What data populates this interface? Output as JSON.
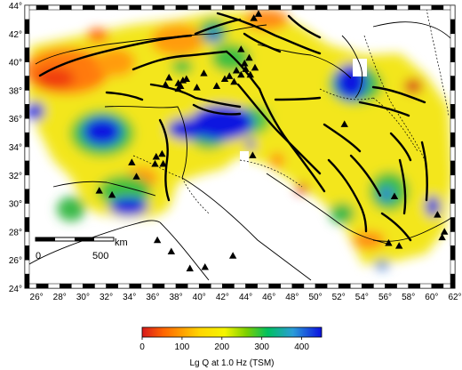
{
  "map": {
    "lon_ticks": [
      "26°",
      "28°",
      "30°",
      "32°",
      "34°",
      "36°",
      "38°",
      "40°",
      "42°",
      "44°",
      "46°",
      "48°",
      "50°",
      "52°",
      "54°",
      "56°",
      "58°",
      "60°",
      "62°"
    ],
    "lat_ticks": [
      "44°",
      "42°",
      "40°",
      "38°",
      "36°",
      "34°",
      "32°",
      "30°",
      "28°",
      "26°",
      "24°"
    ],
    "lon_range": [
      25,
      62
    ],
    "lat_range": [
      24,
      44
    ],
    "scale_bar": {
      "start_label": "0",
      "end_label": "500",
      "unit_label": "km"
    },
    "station_symbol": "black-triangle",
    "stations": [
      [
        38.2,
        38.5
      ],
      [
        38.6,
        38.7
      ],
      [
        38.4,
        38.3
      ],
      [
        38.9,
        38.8
      ],
      [
        38.2,
        38.1
      ],
      [
        37.4,
        38.9
      ],
      [
        37.1,
        38.4
      ],
      [
        43.6,
        40.9
      ],
      [
        44.3,
        40.3
      ],
      [
        43.9,
        39.9
      ],
      [
        44.0,
        39.5
      ],
      [
        43.6,
        39.1
      ],
      [
        43.2,
        39.4
      ],
      [
        42.2,
        38.8
      ],
      [
        42.6,
        39.0
      ],
      [
        43.0,
        38.6
      ],
      [
        44.4,
        39.1
      ],
      [
        44.8,
        39.6
      ],
      [
        45.1,
        43.4
      ],
      [
        44.7,
        43.1
      ],
      [
        40.4,
        39.2
      ],
      [
        39.8,
        38.2
      ],
      [
        41.5,
        38.3
      ],
      [
        36.3,
        33.3
      ],
      [
        36.8,
        33.5
      ],
      [
        36.2,
        32.8
      ],
      [
        36.9,
        32.8
      ],
      [
        34.6,
        31.9
      ],
      [
        31.4,
        30.9
      ],
      [
        32.5,
        30.6
      ],
      [
        36.4,
        27.4
      ],
      [
        37.6,
        26.6
      ],
      [
        39.2,
        25.4
      ],
      [
        40.5,
        25.5
      ],
      [
        42.9,
        26.3
      ],
      [
        52.5,
        35.6
      ],
      [
        56.3,
        27.2
      ],
      [
        57.2,
        27.0
      ],
      [
        60.5,
        29.2
      ],
      [
        61.1,
        28.0
      ],
      [
        60.9,
        27.6
      ],
      [
        56.8,
        30.5
      ],
      [
        44.6,
        33.4
      ],
      [
        34.2,
        32.9
      ]
    ]
  },
  "colorbar": {
    "title": "Lg Q at 1.0 Hz (TSM)",
    "ticks": [
      "0",
      "100",
      "200",
      "300",
      "400"
    ],
    "range": [
      0,
      450
    ],
    "colors": [
      "#d7191c",
      "#ff6600",
      "#ffd500",
      "#f5f500",
      "#7dd000",
      "#00c060",
      "#2b9cd8",
      "#0a10e0"
    ]
  }
}
